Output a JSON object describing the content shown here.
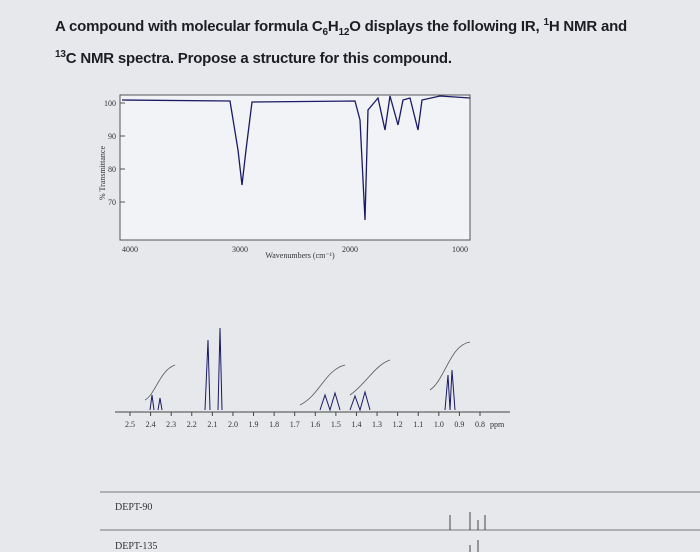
{
  "question": {
    "line1": [
      "A compound with molecular formula C",
      "6",
      "H",
      "12",
      "O displays the following IR, ",
      "1",
      "H NMR and"
    ],
    "line2": [
      "13",
      "C NMR spectra. Propose a structure for this compound."
    ]
  },
  "ir": {
    "y_label": "% Transmittance",
    "y_ticks": [
      "100",
      "90",
      "80",
      "70"
    ],
    "x_ticks": [
      "4000",
      "3000",
      "2000",
      "1000"
    ],
    "x_label": "Wavenumbers (cm⁻¹)"
  },
  "nmr": {
    "x_ticks": [
      "2.5",
      "2.4",
      "2.3",
      "2.2",
      "2.1",
      "2.0",
      "1.9",
      "1.8",
      "1.7",
      "1.6",
      "1.5",
      "1.4",
      "1.3",
      "1.2",
      "1.1",
      "1.0",
      "0.9",
      "0.8"
    ],
    "unit": "ppm"
  },
  "dept": [
    "DEPT-90",
    "DEPT-135"
  ]
}
